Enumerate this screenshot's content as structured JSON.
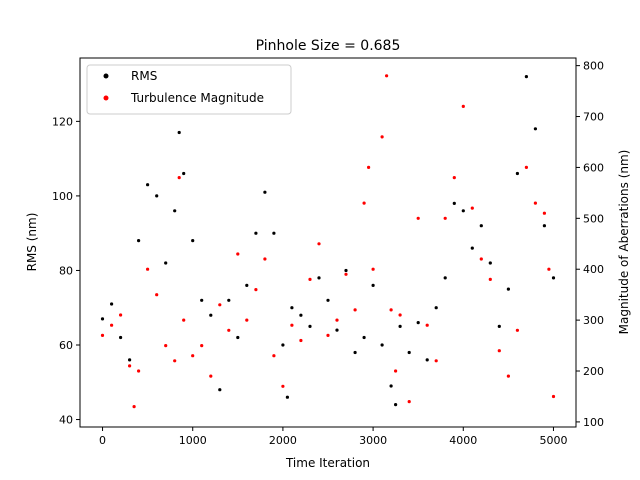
{
  "chart_data": {
    "type": "scatter",
    "title": "Pinhole Size = 0.685",
    "xlabel": "Time Iteration",
    "ylabel": "RMS (nm)",
    "y2label": "Magnitude of Aberrations (nm)",
    "xlim": [
      -250,
      5250
    ],
    "ylim": [
      38,
      137
    ],
    "y2lim": [
      90,
      815
    ],
    "xticks": [
      0,
      1000,
      2000,
      3000,
      4000,
      5000
    ],
    "yticks": [
      40,
      60,
      80,
      100,
      120
    ],
    "y2ticks": [
      100,
      200,
      300,
      400,
      500,
      600,
      700,
      800
    ],
    "legend_position": "top-left",
    "series": [
      {
        "name": "RMS",
        "axis": "left",
        "color": "#000000",
        "x": [
          0,
          100,
          200,
          300,
          400,
          500,
          600,
          700,
          800,
          850,
          900,
          1000,
          1100,
          1200,
          1300,
          1400,
          1500,
          1600,
          1700,
          1800,
          1900,
          2000,
          2050,
          2100,
          2200,
          2300,
          2400,
          2500,
          2600,
          2700,
          2800,
          2900,
          3000,
          3100,
          3200,
          3250,
          3300,
          3400,
          3500,
          3600,
          3700,
          3800,
          3900,
          4000,
          4100,
          4200,
          4300,
          4400,
          4500,
          4600,
          4700,
          4800,
          4900,
          5000
        ],
        "values": [
          67,
          71,
          62,
          56,
          88,
          103,
          100,
          82,
          96,
          117,
          106,
          88,
          72,
          68,
          48,
          72,
          62,
          76,
          90,
          101,
          90,
          60,
          46,
          70,
          68,
          65,
          78,
          72,
          64,
          80,
          58,
          62,
          76,
          60,
          49,
          44,
          65,
          58,
          66,
          56,
          70,
          78,
          98,
          96,
          86,
          92,
          82,
          65,
          75,
          106,
          132,
          118,
          92,
          78
        ]
      },
      {
        "name": "Turbulence Magnitude",
        "axis": "right",
        "color": "#ff0000",
        "x": [
          0,
          100,
          200,
          300,
          350,
          400,
          500,
          600,
          700,
          800,
          850,
          900,
          1000,
          1100,
          1200,
          1300,
          1400,
          1500,
          1600,
          1700,
          1800,
          1900,
          2000,
          2100,
          2200,
          2300,
          2400,
          2500,
          2600,
          2700,
          2800,
          2900,
          2950,
          3000,
          3100,
          3150,
          3200,
          3250,
          3300,
          3400,
          3500,
          3600,
          3700,
          3800,
          3900,
          4000,
          4100,
          4200,
          4300,
          4400,
          4500,
          4600,
          4700,
          4800,
          4900,
          4950,
          5000
        ],
        "values": [
          270,
          290,
          310,
          210,
          130,
          200,
          400,
          350,
          250,
          220,
          580,
          300,
          230,
          250,
          190,
          330,
          280,
          430,
          300,
          360,
          420,
          230,
          170,
          290,
          260,
          380,
          450,
          270,
          300,
          390,
          320,
          530,
          600,
          400,
          660,
          780,
          320,
          200,
          310,
          140,
          500,
          290,
          220,
          500,
          580,
          720,
          520,
          420,
          380,
          240,
          190,
          280,
          600,
          530,
          510,
          400,
          150
        ]
      }
    ]
  }
}
